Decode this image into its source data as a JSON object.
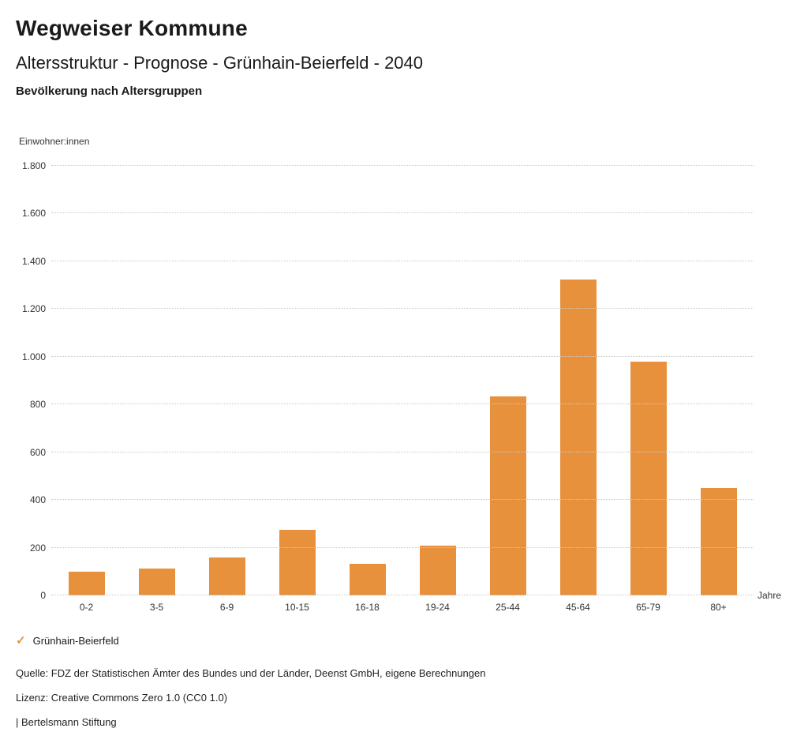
{
  "header": {
    "title": "Wegweiser Kommune",
    "subtitle": "Altersstruktur - Prognose - Grünhain-Beierfeld - 2040",
    "section_title": "Bevölkerung nach Altersgruppen"
  },
  "chart_data": {
    "type": "bar",
    "title": "Bevölkerung nach Altersgruppen",
    "unit_label": "Einwohner:innen",
    "xlabel": "Jahre",
    "ylabel": "Einwohner:innen",
    "categories": [
      "0-2",
      "3-5",
      "6-9",
      "10-15",
      "16-18",
      "19-24",
      "25-44",
      "45-64",
      "65-79",
      "80+"
    ],
    "series": [
      {
        "name": "Grünhain-Beierfeld",
        "values": [
          100,
          112,
          160,
          275,
          132,
          210,
          835,
          1325,
          980,
          450
        ]
      }
    ],
    "ylim": [
      0,
      1800
    ],
    "yticks": [
      0,
      200,
      400,
      600,
      800,
      1000,
      1200,
      1400,
      1600,
      1800
    ],
    "ytick_labels": [
      "0",
      "200",
      "400",
      "600",
      "800",
      "1.000",
      "1.200",
      "1.400",
      "1.600",
      "1.800"
    ],
    "bar_color": "#E8913C",
    "grid": true,
    "grid_style": "dotted",
    "legend_position": "bottom-left"
  },
  "legend": {
    "items": [
      {
        "label": "Grünhain-Beierfeld",
        "color": "#E8913C",
        "marker": "check-icon",
        "marker_glyph": "✓"
      }
    ]
  },
  "footer": {
    "source": "Quelle: FDZ der Statistischen Ämter des Bundes und der Länder, Deenst GmbH, eigene Berechnungen",
    "license": "Lizenz: Creative Commons Zero 1.0 (CC0 1.0)",
    "attribution": "| Bertelsmann Stiftung"
  }
}
